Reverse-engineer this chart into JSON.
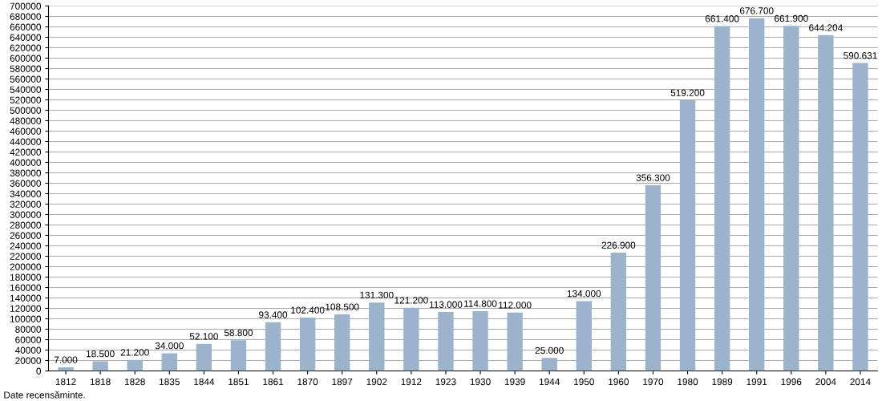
{
  "chart_data": {
    "type": "bar",
    "categories": [
      "1812",
      "1818",
      "1828",
      "1835",
      "1844",
      "1851",
      "1861",
      "1870",
      "1897",
      "1902",
      "1912",
      "1923",
      "1930",
      "1939",
      "1944",
      "1950",
      "1960",
      "1970",
      "1980",
      "1989",
      "1991",
      "1996",
      "2004",
      "2014"
    ],
    "values": [
      7000,
      18500,
      21200,
      34000,
      52100,
      58800,
      93400,
      102400,
      108500,
      131300,
      121200,
      113000,
      114800,
      112000,
      25000,
      134000,
      226900,
      356300,
      519200,
      661400,
      676700,
      661900,
      644204,
      590631
    ],
    "value_labels": [
      "7.000",
      "18.500",
      "21.200",
      "34.000",
      "52.100",
      "58.800",
      "93.400",
      "102.400",
      "108.500",
      "131.300",
      "121.200",
      "113.000",
      "114.800",
      "112.000",
      "25.000",
      "134.000",
      "226.900",
      "356.300",
      "519.200",
      "661.400",
      "676.700",
      "661.900",
      "644.204",
      "590.631"
    ],
    "color": "#9cb3cc",
    "ylim": [
      0,
      700000
    ],
    "yticks": [
      0,
      20000,
      40000,
      60000,
      80000,
      100000,
      120000,
      140000,
      160000,
      180000,
      200000,
      220000,
      240000,
      260000,
      280000,
      300000,
      320000,
      340000,
      360000,
      380000,
      400000,
      420000,
      440000,
      460000,
      480000,
      500000,
      520000,
      540000,
      560000,
      580000,
      600000,
      620000,
      640000,
      660000,
      680000,
      700000
    ],
    "grid": "y",
    "annotations": [
      "Date recensăminte."
    ]
  }
}
